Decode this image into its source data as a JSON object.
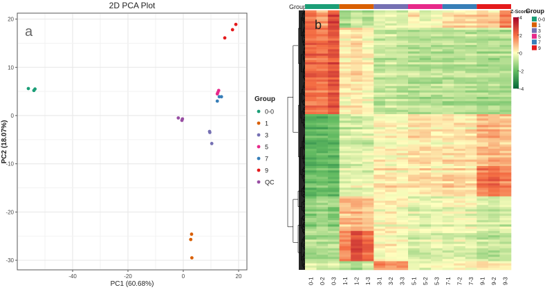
{
  "chart_data": [
    {
      "type": "scatter",
      "title": "2D PCA Plot",
      "panel_label": "a",
      "xlabel": "PC1 (60.68%)",
      "ylabel": "PC2 (18.07%)",
      "xlim": [
        -59,
        22
      ],
      "ylim": [
        -32,
        21
      ],
      "xticks": [
        -40,
        -20,
        0,
        20
      ],
      "yticks": [
        20,
        10,
        0,
        -10,
        -20,
        -30
      ],
      "grid": true,
      "legend": {
        "title": "Group",
        "placement": "right"
      },
      "series": [
        {
          "name": "0-0",
          "color": "#1b9e77",
          "points": [
            [
              -56,
              5.6
            ],
            [
              -54,
              5.2
            ],
            [
              -53.6,
              5.5
            ]
          ]
        },
        {
          "name": "1",
          "color": "#d95f02",
          "points": [
            [
              3.0,
              -24.6
            ],
            [
              2.7,
              -25.7
            ],
            [
              3.1,
              -29.5
            ]
          ]
        },
        {
          "name": "3",
          "color": "#7570b3",
          "points": [
            [
              9.5,
              -3.3
            ],
            [
              9.6,
              -3.5
            ],
            [
              10.3,
              -5.8
            ]
          ]
        },
        {
          "name": "5",
          "color": "#e7298a",
          "points": [
            [
              12.3,
              4.5
            ],
            [
              12.8,
              5.2
            ],
            [
              12.5,
              4.8
            ]
          ]
        },
        {
          "name": "7",
          "color": "#377eb8",
          "points": [
            [
              12.3,
              3.0
            ],
            [
              13.0,
              3.9
            ],
            [
              13.8,
              3.9
            ]
          ]
        },
        {
          "name": "9",
          "color": "#e41a1c",
          "points": [
            [
              15.0,
              16.1
            ],
            [
              17.8,
              17.8
            ],
            [
              19.0,
              18.9
            ]
          ]
        },
        {
          "name": "QC",
          "color": "#984ea3",
          "points": [
            [
              -1.8,
              -0.5
            ],
            [
              -0.3,
              -0.7
            ],
            [
              -0.5,
              -1.0
            ]
          ]
        }
      ]
    },
    {
      "type": "heatmap",
      "panel_label": "b",
      "group_label": "Group",
      "colorbar_title": "Z-Score",
      "colorbar_ticks": [
        4,
        2,
        0,
        -2,
        -4
      ],
      "zlim": [
        -4,
        4
      ],
      "legend_title": "Group",
      "groups": [
        {
          "name": "0-0",
          "color": "#1b9e77"
        },
        {
          "name": "1",
          "color": "#d95f02"
        },
        {
          "name": "3",
          "color": "#7570b3"
        },
        {
          "name": "5",
          "color": "#e7298a"
        },
        {
          "name": "7",
          "color": "#377eb8"
        },
        {
          "name": "9",
          "color": "#e41a1c"
        }
      ],
      "samples": [
        "0-1",
        "0-2",
        "0-3",
        "1-1",
        "1-2",
        "1-3",
        "3-1",
        "3-2",
        "3-3",
        "5-1",
        "5-2",
        "5-3",
        "7-1",
        "7-2",
        "7-3",
        "9-1",
        "9-2",
        "9-3"
      ],
      "row_blocks": [
        {
          "row_share": 0.07,
          "mean_z": [
            1.8,
            1.2,
            2.6,
            -1.2,
            -0.8,
            -1.0,
            -0.5,
            -0.3,
            -0.6,
            0.2,
            -0.4,
            -0.2,
            0.3,
            0.5,
            0.4,
            0.8,
            0.6,
            1.8
          ]
        },
        {
          "row_share": 0.33,
          "mean_z": [
            2.1,
            2.0,
            2.5,
            0.3,
            0.5,
            0.2,
            -0.7,
            -0.7,
            -0.8,
            -0.9,
            -0.9,
            -0.9,
            -0.9,
            -0.9,
            -0.9,
            -1.0,
            -1.0,
            -1.0
          ]
        },
        {
          "row_share": 0.2,
          "mean_z": [
            -2.3,
            -2.2,
            -2.2,
            -0.6,
            -0.6,
            -0.5,
            0.1,
            0.0,
            0.1,
            0.3,
            0.4,
            0.2,
            0.3,
            0.4,
            0.3,
            0.9,
            1.0,
            0.8
          ]
        },
        {
          "row_share": 0.12,
          "mean_z": [
            -2.0,
            -1.9,
            -2.0,
            -0.4,
            -0.3,
            -0.3,
            0.2,
            0.3,
            0.1,
            0.3,
            0.4,
            0.3,
            0.5,
            0.6,
            0.5,
            1.7,
            2.0,
            1.6
          ]
        },
        {
          "row_share": 0.13,
          "mean_z": [
            -1.5,
            -1.4,
            -1.5,
            0.8,
            0.9,
            0.7,
            0.0,
            0.1,
            -0.1,
            -0.4,
            -0.5,
            -0.4,
            -0.3,
            -0.2,
            -0.3,
            -0.6,
            -0.7,
            -0.6
          ]
        },
        {
          "row_share": 0.12,
          "mean_z": [
            -1.0,
            -1.0,
            -0.9,
            1.8,
            2.8,
            2.2,
            0.1,
            0.2,
            0.0,
            -0.5,
            -0.5,
            -0.4,
            -0.4,
            -0.3,
            -0.4,
            -0.7,
            -0.8,
            -0.7
          ]
        },
        {
          "row_share": 0.03,
          "mean_z": [
            -0.4,
            -0.5,
            -0.4,
            -1.0,
            -1.1,
            -0.9,
            1.6,
            1.4,
            1.5,
            -0.2,
            -0.3,
            -0.2,
            0.0,
            0.1,
            0.0,
            0.3,
            0.2,
            0.1
          ]
        }
      ]
    }
  ]
}
